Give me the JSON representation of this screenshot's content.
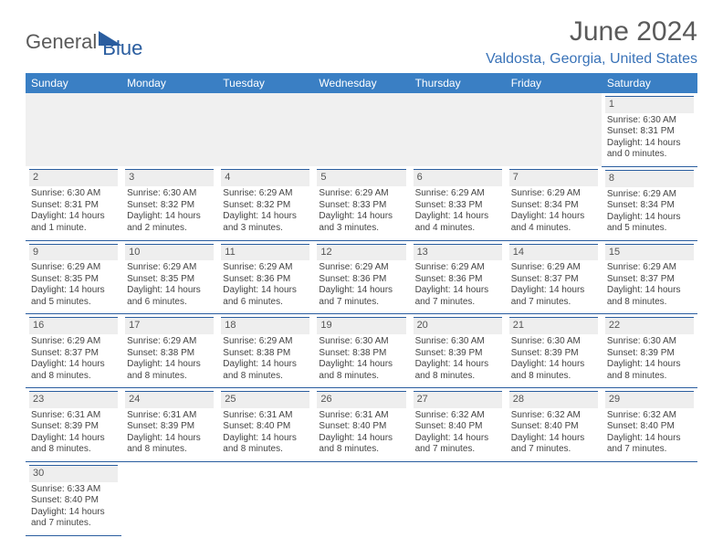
{
  "logo": {
    "part1": "General",
    "part2": "Blue"
  },
  "title": "June 2024",
  "location": "Valdosta, Georgia, United States",
  "headers": [
    "Sunday",
    "Monday",
    "Tuesday",
    "Wednesday",
    "Thursday",
    "Friday",
    "Saturday"
  ],
  "colors": {
    "header_bg": "#3a7fc4",
    "header_text": "#ffffff",
    "accent": "#2a5d9f",
    "daynum_bg": "#eeeeee",
    "text": "#444444",
    "location": "#3a73b8"
  },
  "weeks": [
    [
      null,
      null,
      null,
      null,
      null,
      null,
      {
        "n": "1",
        "sr": "Sunrise: 6:30 AM",
        "ss": "Sunset: 8:31 PM",
        "d1": "Daylight: 14 hours",
        "d2": "and 0 minutes."
      }
    ],
    [
      {
        "n": "2",
        "sr": "Sunrise: 6:30 AM",
        "ss": "Sunset: 8:31 PM",
        "d1": "Daylight: 14 hours",
        "d2": "and 1 minute."
      },
      {
        "n": "3",
        "sr": "Sunrise: 6:30 AM",
        "ss": "Sunset: 8:32 PM",
        "d1": "Daylight: 14 hours",
        "d2": "and 2 minutes."
      },
      {
        "n": "4",
        "sr": "Sunrise: 6:29 AM",
        "ss": "Sunset: 8:32 PM",
        "d1": "Daylight: 14 hours",
        "d2": "and 3 minutes."
      },
      {
        "n": "5",
        "sr": "Sunrise: 6:29 AM",
        "ss": "Sunset: 8:33 PM",
        "d1": "Daylight: 14 hours",
        "d2": "and 3 minutes."
      },
      {
        "n": "6",
        "sr": "Sunrise: 6:29 AM",
        "ss": "Sunset: 8:33 PM",
        "d1": "Daylight: 14 hours",
        "d2": "and 4 minutes."
      },
      {
        "n": "7",
        "sr": "Sunrise: 6:29 AM",
        "ss": "Sunset: 8:34 PM",
        "d1": "Daylight: 14 hours",
        "d2": "and 4 minutes."
      },
      {
        "n": "8",
        "sr": "Sunrise: 6:29 AM",
        "ss": "Sunset: 8:34 PM",
        "d1": "Daylight: 14 hours",
        "d2": "and 5 minutes."
      }
    ],
    [
      {
        "n": "9",
        "sr": "Sunrise: 6:29 AM",
        "ss": "Sunset: 8:35 PM",
        "d1": "Daylight: 14 hours",
        "d2": "and 5 minutes."
      },
      {
        "n": "10",
        "sr": "Sunrise: 6:29 AM",
        "ss": "Sunset: 8:35 PM",
        "d1": "Daylight: 14 hours",
        "d2": "and 6 minutes."
      },
      {
        "n": "11",
        "sr": "Sunrise: 6:29 AM",
        "ss": "Sunset: 8:36 PM",
        "d1": "Daylight: 14 hours",
        "d2": "and 6 minutes."
      },
      {
        "n": "12",
        "sr": "Sunrise: 6:29 AM",
        "ss": "Sunset: 8:36 PM",
        "d1": "Daylight: 14 hours",
        "d2": "and 7 minutes."
      },
      {
        "n": "13",
        "sr": "Sunrise: 6:29 AM",
        "ss": "Sunset: 8:36 PM",
        "d1": "Daylight: 14 hours",
        "d2": "and 7 minutes."
      },
      {
        "n": "14",
        "sr": "Sunrise: 6:29 AM",
        "ss": "Sunset: 8:37 PM",
        "d1": "Daylight: 14 hours",
        "d2": "and 7 minutes."
      },
      {
        "n": "15",
        "sr": "Sunrise: 6:29 AM",
        "ss": "Sunset: 8:37 PM",
        "d1": "Daylight: 14 hours",
        "d2": "and 8 minutes."
      }
    ],
    [
      {
        "n": "16",
        "sr": "Sunrise: 6:29 AM",
        "ss": "Sunset: 8:37 PM",
        "d1": "Daylight: 14 hours",
        "d2": "and 8 minutes."
      },
      {
        "n": "17",
        "sr": "Sunrise: 6:29 AM",
        "ss": "Sunset: 8:38 PM",
        "d1": "Daylight: 14 hours",
        "d2": "and 8 minutes."
      },
      {
        "n": "18",
        "sr": "Sunrise: 6:29 AM",
        "ss": "Sunset: 8:38 PM",
        "d1": "Daylight: 14 hours",
        "d2": "and 8 minutes."
      },
      {
        "n": "19",
        "sr": "Sunrise: 6:30 AM",
        "ss": "Sunset: 8:38 PM",
        "d1": "Daylight: 14 hours",
        "d2": "and 8 minutes."
      },
      {
        "n": "20",
        "sr": "Sunrise: 6:30 AM",
        "ss": "Sunset: 8:39 PM",
        "d1": "Daylight: 14 hours",
        "d2": "and 8 minutes."
      },
      {
        "n": "21",
        "sr": "Sunrise: 6:30 AM",
        "ss": "Sunset: 8:39 PM",
        "d1": "Daylight: 14 hours",
        "d2": "and 8 minutes."
      },
      {
        "n": "22",
        "sr": "Sunrise: 6:30 AM",
        "ss": "Sunset: 8:39 PM",
        "d1": "Daylight: 14 hours",
        "d2": "and 8 minutes."
      }
    ],
    [
      {
        "n": "23",
        "sr": "Sunrise: 6:31 AM",
        "ss": "Sunset: 8:39 PM",
        "d1": "Daylight: 14 hours",
        "d2": "and 8 minutes."
      },
      {
        "n": "24",
        "sr": "Sunrise: 6:31 AM",
        "ss": "Sunset: 8:39 PM",
        "d1": "Daylight: 14 hours",
        "d2": "and 8 minutes."
      },
      {
        "n": "25",
        "sr": "Sunrise: 6:31 AM",
        "ss": "Sunset: 8:40 PM",
        "d1": "Daylight: 14 hours",
        "d2": "and 8 minutes."
      },
      {
        "n": "26",
        "sr": "Sunrise: 6:31 AM",
        "ss": "Sunset: 8:40 PM",
        "d1": "Daylight: 14 hours",
        "d2": "and 8 minutes."
      },
      {
        "n": "27",
        "sr": "Sunrise: 6:32 AM",
        "ss": "Sunset: 8:40 PM",
        "d1": "Daylight: 14 hours",
        "d2": "and 7 minutes."
      },
      {
        "n": "28",
        "sr": "Sunrise: 6:32 AM",
        "ss": "Sunset: 8:40 PM",
        "d1": "Daylight: 14 hours",
        "d2": "and 7 minutes."
      },
      {
        "n": "29",
        "sr": "Sunrise: 6:32 AM",
        "ss": "Sunset: 8:40 PM",
        "d1": "Daylight: 14 hours",
        "d2": "and 7 minutes."
      }
    ],
    [
      {
        "n": "30",
        "sr": "Sunrise: 6:33 AM",
        "ss": "Sunset: 8:40 PM",
        "d1": "Daylight: 14 hours",
        "d2": "and 7 minutes."
      },
      null,
      null,
      null,
      null,
      null,
      null
    ]
  ]
}
